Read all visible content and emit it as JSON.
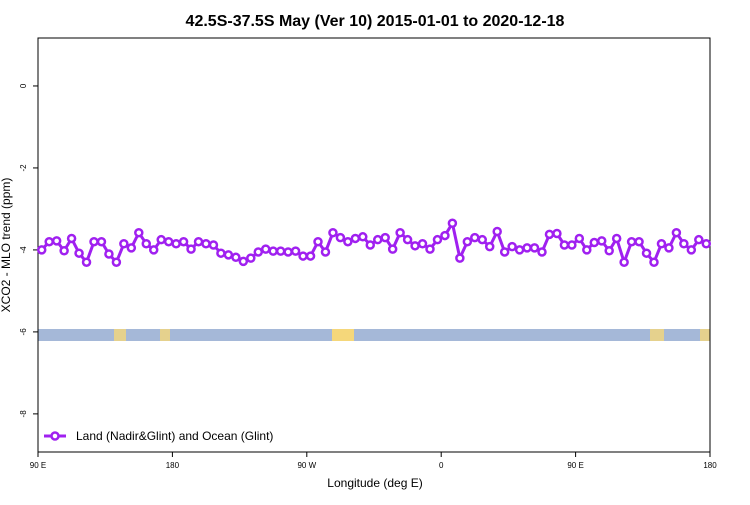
{
  "chart_data": {
    "type": "line",
    "title": "42.5S-37.5S May (Ver 10)   2015-01-01 to 2020-12-18",
    "xlabel": "Longitude (deg E)",
    "ylabel": "XCO2 - MLO trend (ppm)",
    "xlim": [
      90,
      540
    ],
    "ylim": [
      -8.93,
      1.17
    ],
    "xticks": [
      {
        "value": 90,
        "label": "90 E"
      },
      180,
      {
        "value": 270,
        "label": "90 W"
      },
      {
        "value": 360,
        "label": "0"
      },
      {
        "value": 450,
        "label": "90 E"
      },
      {
        "value": 540,
        "label": "180"
      }
    ],
    "yticks": [
      0,
      -2,
      -4,
      -6,
      -8
    ],
    "x": [
      92.5,
      97.5,
      102.5,
      107.5,
      112.5,
      117.5,
      122.5,
      127.5,
      132.5,
      137.5,
      142.5,
      147.5,
      152.5,
      157.5,
      162.5,
      167.5,
      172.5,
      177.5,
      182.5,
      187.5,
      192.5,
      197.5,
      202.5,
      207.5,
      212.5,
      217.5,
      222.5,
      227.5,
      232.5,
      237.5,
      242.5,
      247.5,
      252.5,
      257.5,
      262.5,
      267.5,
      272.5,
      277.5,
      282.5,
      287.5,
      292.5,
      297.5,
      302.5,
      307.5,
      312.5,
      317.5,
      322.5,
      327.5,
      332.5,
      337.5,
      342.5,
      347.5,
      352.5,
      357.5,
      362.5,
      367.5,
      372.5,
      377.5,
      382.5,
      387.5,
      392.5,
      397.5,
      402.5,
      407.5,
      412.5,
      417.5,
      422.5,
      427.5,
      432.5,
      437.5,
      442.5,
      447.5,
      452.5,
      457.5,
      462.5,
      467.5,
      472.5,
      477.5,
      482.5,
      487.5,
      492.5,
      497.5,
      502.5,
      507.5,
      512.5,
      517.5,
      522.5,
      527.5,
      532.5,
      537.5
    ],
    "series": [
      {
        "name": "Land (Nadir&Glint) and Ocean (Glint)",
        "color": "#a020f0",
        "values": [
          -4.0,
          -3.8,
          -3.78,
          -4.02,
          -3.72,
          -4.08,
          -4.3,
          -3.8,
          -3.8,
          -4.1,
          -4.3,
          -3.85,
          -3.95,
          -3.58,
          -3.85,
          -4.0,
          -3.75,
          -3.8,
          -3.85,
          -3.8,
          -3.98,
          -3.8,
          -3.85,
          -3.88,
          -4.08,
          -4.12,
          -4.18,
          -4.28,
          -4.2,
          -4.05,
          -3.98,
          -4.03,
          -4.03,
          -4.05,
          -4.03,
          -4.15,
          -4.15,
          -3.8,
          -4.05,
          -3.58,
          -3.7,
          -3.8,
          -3.72,
          -3.68,
          -3.88,
          -3.75,
          -3.7,
          -3.98,
          -3.58,
          -3.75,
          -3.9,
          -3.85,
          -3.98,
          -3.75,
          -3.65,
          -3.35,
          -4.2,
          -3.8,
          -3.7,
          -3.75,
          -3.92,
          -3.55,
          -4.05,
          -3.92,
          -4.0,
          -3.95,
          -3.95,
          -4.05,
          -3.62,
          -3.6,
          -3.88,
          -3.88,
          -3.72,
          -4.0,
          -3.82,
          -3.78,
          -4.02,
          -3.72,
          -4.3,
          -3.8,
          -3.8,
          -4.08,
          -4.3,
          -3.85,
          -3.95,
          -3.58,
          -3.85,
          -4.0,
          -3.75,
          -3.85
        ]
      }
    ],
    "legend": "bottom-left"
  }
}
